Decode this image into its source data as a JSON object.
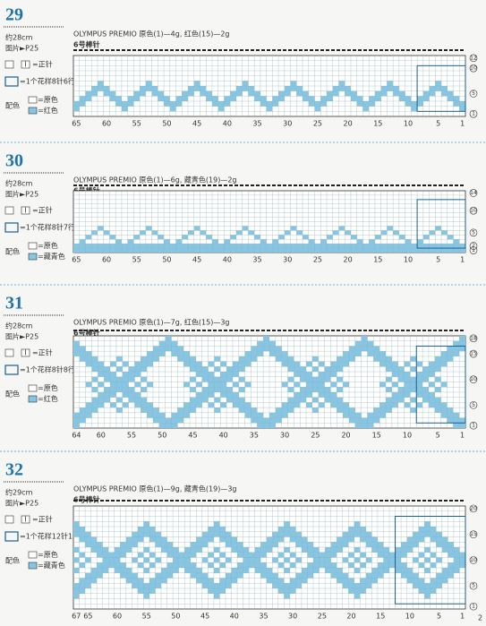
{
  "sections": [
    {
      "number": "29",
      "size": "约28cm",
      "photo": "图片►P25",
      "yarn": "OLYMPUS PREMIO  原色(1)—4g, 红色(15)—2g",
      "needle": "6号棒针",
      "knit_symbol": "I",
      "knit": "=正针",
      "repeat": "=1个花样8针6行",
      "color_label": "配色",
      "colors": [
        "=原色",
        "=红色"
      ],
      "columns": [
        65,
        60,
        55,
        50,
        45,
        40,
        35,
        30,
        25,
        20,
        15,
        10,
        5,
        1
      ],
      "rows": [
        12,
        10,
        5,
        1
      ]
    },
    {
      "number": "30",
      "size": "约28cm",
      "photo": "图片►P25",
      "yarn": "OLYMPUS PREMIO  原色(1)—6g, 藏青色(19)—2g",
      "needle": "6号棒针",
      "knit_symbol": "I",
      "knit": "=正针",
      "repeat": "=1个花样8针7行",
      "color_label": "配色",
      "colors": [
        "=原色",
        "=藏青色"
      ],
      "columns": [
        65,
        60,
        55,
        50,
        45,
        40,
        35,
        30,
        25,
        20,
        15,
        10,
        5,
        1
      ],
      "rows": [
        14,
        10,
        5,
        2,
        1
      ]
    },
    {
      "number": "31",
      "size": "约28cm",
      "photo": "图片►P25",
      "yarn": "OLYMPUS PREMIO  原色(1)—7g, 红色(15)—3g",
      "needle": "6号棒针",
      "knit_symbol": "I",
      "knit": "=正针",
      "repeat": "=1个花样8针8行",
      "color_label": "配色",
      "colors": [
        "=原色",
        "=红色"
      ],
      "columns": [
        64,
        60,
        55,
        50,
        45,
        40,
        35,
        30,
        25,
        20,
        15,
        10,
        5,
        1
      ],
      "rows": [
        18,
        15,
        10,
        5,
        1
      ]
    },
    {
      "number": "32",
      "size": "约29cm",
      "photo": "图片►P25",
      "yarn": "OLYMPUS PREMIO  原色(1)—9g, 藏青色(19)—3g",
      "needle": "6号棒针",
      "knit_symbol": "I",
      "knit": "=正针",
      "repeat": "=1个花样12针13行",
      "color_label": "配色",
      "colors": [
        "=原色",
        "=藏青色"
      ],
      "columns": [
        67,
        65,
        60,
        55,
        50,
        45,
        40,
        35,
        30,
        25,
        20,
        15,
        10,
        5,
        1
      ],
      "rows": [
        20,
        15,
        10,
        5,
        1
      ]
    }
  ],
  "page_number": "2"
}
